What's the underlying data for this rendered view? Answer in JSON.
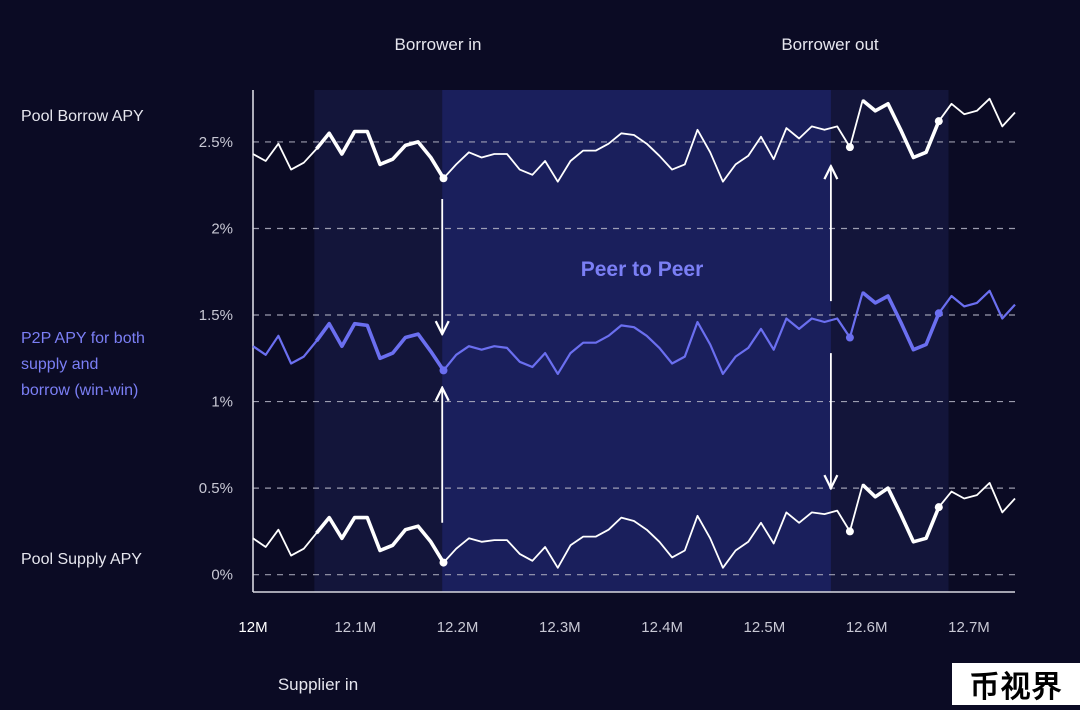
{
  "chart_data": {
    "type": "line",
    "colors": {
      "background": "#0b0b24",
      "band_outer": "#13153a",
      "band_inner": "#1a1f5c",
      "pool_line": "#ffffff",
      "p2p_line": "#6b6ff0",
      "p2p_label": "#7b7ff5",
      "grid": "#b5b5c5",
      "axis": "#d8d8e0",
      "label": "#e6e6ee"
    },
    "x_ticks": [
      "12M",
      "12.1M",
      "12.2M",
      "12.3M",
      "12.4M",
      "12.5M",
      "12.6M",
      "12.7M"
    ],
    "xlim": [
      12.0,
      12.745
    ],
    "y_ticks": [
      "0%",
      "0.5%",
      "1%",
      "1.5%",
      "2%",
      "2.5%"
    ],
    "ylim": [
      -0.1,
      2.8
    ],
    "xlabel": "Supplier in",
    "top_labels": [
      "Borrower in",
      "Borrower out"
    ],
    "center_label": "Peer to Peer",
    "bands": {
      "outer": [
        12.06,
        12.68
      ],
      "inner": [
        12.185,
        12.565
      ]
    },
    "series": [
      {
        "name": "Pool Borrow APY",
        "role": "pool",
        "values": [
          2.43,
          2.39,
          2.49,
          2.34,
          2.38,
          2.46,
          2.55,
          2.43,
          2.56,
          2.56,
          2.37,
          2.4,
          2.48,
          2.5,
          2.41,
          2.29,
          2.37,
          2.44,
          2.41,
          2.43,
          2.43,
          2.34,
          2.31,
          2.39,
          2.27,
          2.39,
          2.45,
          2.45,
          2.49,
          2.55,
          2.54,
          2.49,
          2.42,
          2.34,
          2.37,
          2.57,
          2.44,
          2.27,
          2.37,
          2.42,
          2.53,
          2.4,
          2.58,
          2.52,
          2.59,
          2.57,
          2.59,
          2.47,
          2.74,
          2.68,
          2.72,
          2.57,
          2.41,
          2.44,
          2.62,
          2.72,
          2.66,
          2.68,
          2.75,
          2.59,
          2.67
        ]
      },
      {
        "name": "P2P APY for both supply and borrow (win-win)",
        "role": "p2p",
        "values": [
          1.32,
          1.27,
          1.38,
          1.22,
          1.26,
          1.35,
          1.45,
          1.32,
          1.45,
          1.44,
          1.25,
          1.28,
          1.37,
          1.39,
          1.29,
          1.18,
          1.27,
          1.32,
          1.3,
          1.32,
          1.31,
          1.23,
          1.2,
          1.28,
          1.16,
          1.28,
          1.34,
          1.34,
          1.38,
          1.44,
          1.43,
          1.38,
          1.31,
          1.22,
          1.26,
          1.46,
          1.33,
          1.16,
          1.26,
          1.31,
          1.42,
          1.3,
          1.48,
          1.42,
          1.48,
          1.46,
          1.48,
          1.37,
          1.63,
          1.57,
          1.61,
          1.46,
          1.3,
          1.33,
          1.51,
          1.61,
          1.55,
          1.57,
          1.64,
          1.48,
          1.56
        ]
      },
      {
        "name": "Pool Supply APY",
        "role": "pool",
        "values": [
          0.21,
          0.16,
          0.26,
          0.11,
          0.15,
          0.24,
          0.33,
          0.21,
          0.33,
          0.33,
          0.14,
          0.17,
          0.26,
          0.28,
          0.19,
          0.07,
          0.15,
          0.21,
          0.19,
          0.2,
          0.2,
          0.12,
          0.08,
          0.16,
          0.04,
          0.17,
          0.22,
          0.22,
          0.26,
          0.33,
          0.31,
          0.26,
          0.19,
          0.1,
          0.14,
          0.34,
          0.21,
          0.04,
          0.14,
          0.19,
          0.3,
          0.18,
          0.36,
          0.3,
          0.36,
          0.35,
          0.37,
          0.25,
          0.52,
          0.45,
          0.5,
          0.35,
          0.19,
          0.21,
          0.39,
          0.48,
          0.44,
          0.46,
          0.53,
          0.36,
          0.44
        ]
      }
    ],
    "emphasis_ranges": [
      [
        5,
        15
      ],
      [
        48,
        54
      ]
    ],
    "markers": [
      15,
      47,
      54
    ],
    "arrows": [
      {
        "x": 12.185,
        "from": 2.17,
        "to": 1.39,
        "head": "down"
      },
      {
        "x": 12.185,
        "from": 0.3,
        "to": 1.08,
        "head": "up"
      },
      {
        "x": 12.565,
        "from": 1.58,
        "to": 2.36,
        "head": "up"
      },
      {
        "x": 12.565,
        "from": 1.28,
        "to": 0.5,
        "head": "down"
      }
    ]
  },
  "watermark": "币视界"
}
